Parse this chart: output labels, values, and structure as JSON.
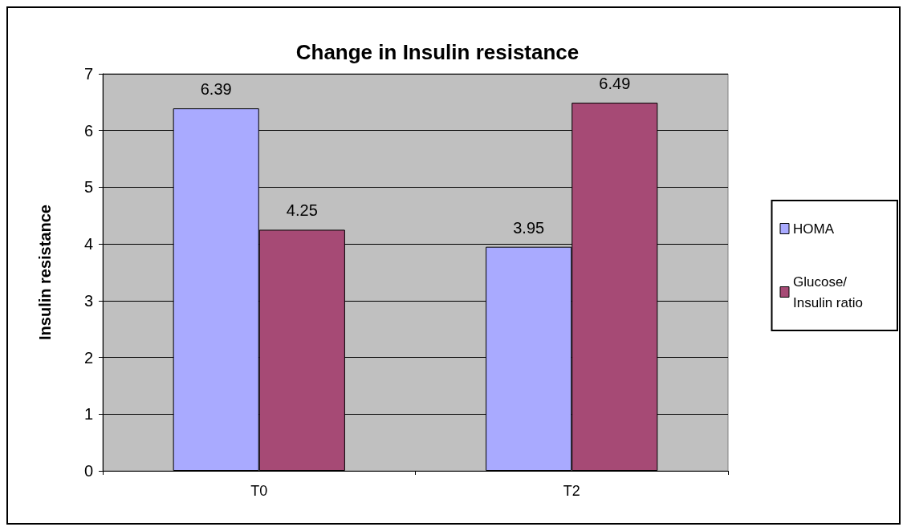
{
  "chart_data": {
    "type": "bar",
    "title": "Change in Insulin resistance",
    "ylabel": "Insulin resistance",
    "categories": [
      "T0",
      "T2"
    ],
    "series": [
      {
        "name": "HOMA",
        "color": "#a9aaff",
        "values": [
          6.39,
          3.95
        ]
      },
      {
        "name": "Glucose/ Insulin ratio",
        "color": "#a64a75",
        "values": [
          4.25,
          6.49
        ]
      }
    ],
    "ylim": [
      0,
      7
    ],
    "yticks": [
      0,
      1,
      2,
      3,
      4,
      5,
      6,
      7
    ],
    "grid": "y",
    "legend": "right",
    "data_labels": true
  }
}
